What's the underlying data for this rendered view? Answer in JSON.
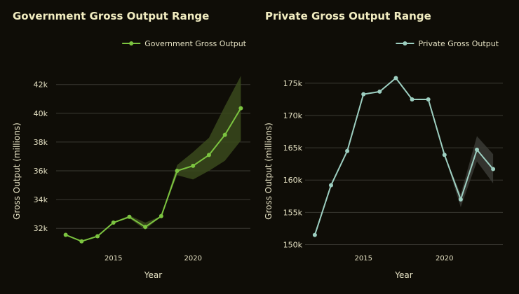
{
  "chart_data": [
    {
      "type": "line",
      "title": "Government Gross Output Range",
      "xlabel": "Year",
      "ylabel": "Gross Output (millions)",
      "legend": "top-right",
      "grid": "horizontal",
      "color": "#7cc440",
      "band_color": "#3a4a1c",
      "xlim": [
        2011.4,
        2023.6
      ],
      "ylim": [
        30600,
        43300
      ],
      "xticks": [
        2015,
        2020
      ],
      "xtick_labels": [
        "2015",
        "2020"
      ],
      "yticks": [
        32000,
        34000,
        36000,
        38000,
        40000,
        42000
      ],
      "ytick_labels": [
        "32k",
        "34k",
        "36k",
        "38k",
        "40k",
        "42k"
      ],
      "series": [
        {
          "name": "Government Gross Output",
          "x": [
            2012,
            2013,
            2014,
            2015,
            2016,
            2017,
            2018,
            2019,
            2020,
            2021,
            2022,
            2023
          ],
          "values": [
            31550,
            31100,
            31450,
            32400,
            32800,
            32100,
            32850,
            36000,
            36350,
            37100,
            38500,
            40350
          ],
          "band_low": [
            31550,
            31100,
            31450,
            32400,
            32700,
            31900,
            32850,
            35700,
            35400,
            36000,
            36700,
            38100
          ],
          "band_high": [
            31550,
            31100,
            31450,
            32400,
            32900,
            32400,
            32850,
            36400,
            37300,
            38300,
            40500,
            42600
          ]
        }
      ]
    },
    {
      "type": "line",
      "title": "Private Gross Output Range",
      "xlabel": "Year",
      "ylabel": "Gross Output (millions)",
      "legend": "top-right",
      "grid": "horizontal",
      "color": "#9dcfc1",
      "band_color": "#3a3b35",
      "xlim": [
        2011.4,
        2023.6
      ],
      "ylim": [
        149400,
        177700
      ],
      "xticks": [
        2015,
        2020
      ],
      "xtick_labels": [
        "2015",
        "2020"
      ],
      "yticks": [
        150000,
        155000,
        160000,
        165000,
        170000,
        175000
      ],
      "ytick_labels": [
        "150k",
        "155k",
        "160k",
        "165k",
        "170k",
        "175k"
      ],
      "series": [
        {
          "name": "Private Gross Output",
          "x": [
            2012,
            2013,
            2014,
            2015,
            2016,
            2017,
            2018,
            2019,
            2020,
            2021,
            2022,
            2023
          ],
          "values": [
            151500,
            159200,
            164500,
            173300,
            173700,
            175800,
            172500,
            172500,
            163900,
            157000,
            164700,
            161700
          ],
          "band_low": [
            151500,
            159200,
            164500,
            173300,
            173700,
            175800,
            172500,
            172500,
            163900,
            155800,
            162900,
            159500
          ],
          "band_high": [
            151500,
            159200,
            164500,
            173300,
            173700,
            175800,
            172500,
            172500,
            163900,
            157800,
            166800,
            164000
          ]
        }
      ]
    }
  ]
}
